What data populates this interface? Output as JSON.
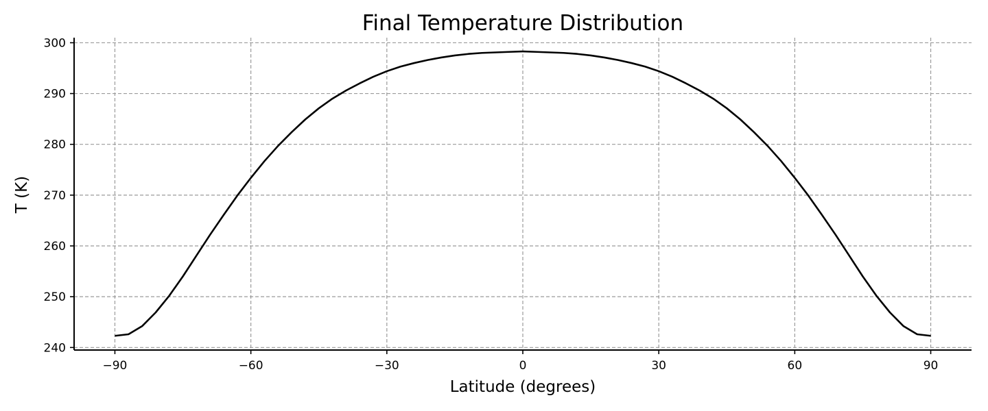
{
  "chart_data": {
    "type": "line",
    "title": "Final Temperature Distribution",
    "xlabel": "Latitude (degrees)",
    "ylabel": "T (K)",
    "xlim": [
      -99,
      99
    ],
    "ylim": [
      239.5,
      301
    ],
    "xticks": [
      -90,
      -60,
      -30,
      0,
      30,
      60,
      90
    ],
    "xtick_labels": [
      "−90",
      "−60",
      "−30",
      "0",
      "30",
      "60",
      "90"
    ],
    "yticks": [
      240,
      250,
      260,
      270,
      280,
      290,
      300
    ],
    "ytick_labels": [
      "240",
      "250",
      "260",
      "270",
      "280",
      "290",
      "300"
    ],
    "grid": true,
    "series": [
      {
        "color": "#000000",
        "x": [
          -90,
          -87,
          -84,
          -81,
          -78,
          -75,
          -72,
          -69,
          -66,
          -63,
          -60,
          -57,
          -54,
          -51,
          -48,
          -45,
          -42,
          -39,
          -36,
          -33,
          -30,
          -27,
          -24,
          -21,
          -18,
          -15,
          -12,
          -9,
          -6,
          -3,
          0,
          3,
          6,
          9,
          12,
          15,
          18,
          21,
          24,
          27,
          30,
          33,
          36,
          39,
          42,
          45,
          48,
          51,
          54,
          57,
          60,
          63,
          66,
          69,
          72,
          75,
          78,
          81,
          84,
          87,
          90
        ],
        "y": [
          242.3,
          242.6,
          244.2,
          246.9,
          250.2,
          254.0,
          258.1,
          262.2,
          266.1,
          269.9,
          273.4,
          276.7,
          279.7,
          282.4,
          284.9,
          287.1,
          289.0,
          290.6,
          292.0,
          293.3,
          294.4,
          295.3,
          296.0,
          296.6,
          297.1,
          297.5,
          297.8,
          298.0,
          298.1,
          298.2,
          298.3,
          298.2,
          298.1,
          298.0,
          297.8,
          297.5,
          297.1,
          296.6,
          296.0,
          295.3,
          294.4,
          293.3,
          292.0,
          290.6,
          289.0,
          287.1,
          284.9,
          282.4,
          279.7,
          276.7,
          273.4,
          269.9,
          266.1,
          262.2,
          258.1,
          254.0,
          250.2,
          246.9,
          244.2,
          242.6,
          242.3
        ]
      }
    ]
  }
}
